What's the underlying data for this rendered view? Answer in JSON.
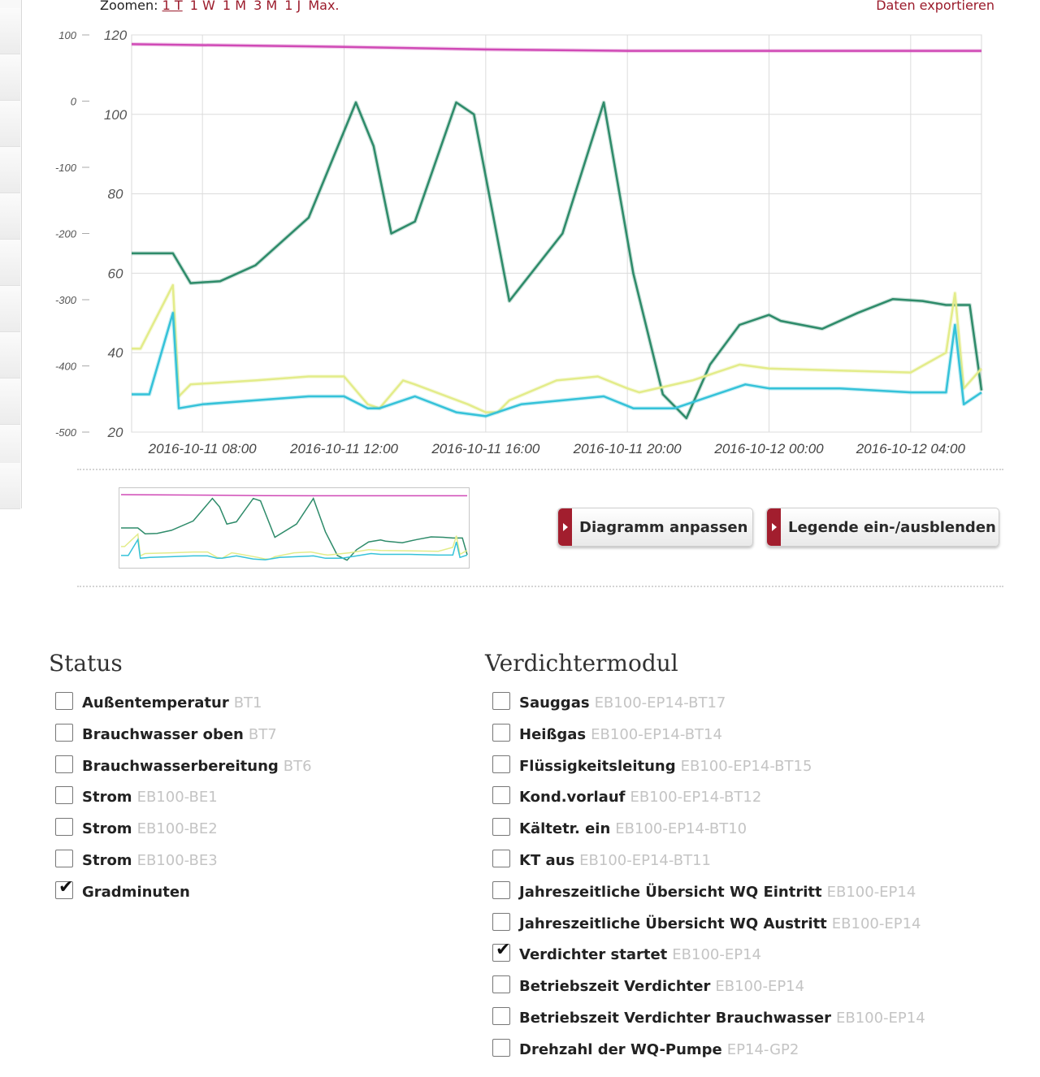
{
  "toolbar": {
    "zoom_label": "Zoomen:",
    "zoom_options": [
      "1 T",
      "1 W",
      "1 M",
      "3 M",
      "1 J",
      "Max."
    ],
    "zoom_active": "1 T",
    "export_label": "Daten exportieren"
  },
  "colors": {
    "accent": "#9b1b2b",
    "series_magenta": "#d04ab6",
    "series_green": "#2e8b6a",
    "series_yellow": "#e3ec8a",
    "series_cyan": "#35c2d9"
  },
  "chart_data": {
    "type": "line",
    "x_axis": {
      "type": "datetime",
      "ticks": [
        "2016-10-11 08:00",
        "2016-10-11 12:00",
        "2016-10-11 16:00",
        "2016-10-11 20:00",
        "2016-10-12 00:00",
        "2016-10-12 04:00"
      ]
    },
    "y_axis_left": {
      "ticks": [
        120,
        100,
        80,
        60,
        40,
        20
      ],
      "ylim": [
        20,
        120
      ]
    },
    "y_axis_secondary": {
      "ticks": [
        100,
        0,
        -100,
        -200,
        -300,
        -400,
        -500
      ],
      "ylim": [
        -500,
        100
      ]
    },
    "grid": true,
    "series": [
      {
        "axis": "secondary",
        "color": "#d04ab6",
        "x": [
          "2016-10-11 06:00",
          "2016-10-11 12:00",
          "2016-10-11 16:00",
          "2016-10-11 20:00",
          "2016-10-12 00:00",
          "2016-10-12 06:00"
        ],
        "values": [
          86,
          82,
          78,
          76,
          76,
          76
        ]
      },
      {
        "axis": "left",
        "color": "#2e8b6a",
        "x": [
          "2016-10-11 06:00",
          "2016-10-11 07:10",
          "2016-10-11 07:40",
          "2016-10-11 08:30",
          "2016-10-11 09:30",
          "2016-10-11 11:00",
          "2016-10-11 12:20",
          "2016-10-11 12:50",
          "2016-10-11 13:20",
          "2016-10-11 14:00",
          "2016-10-11 15:10",
          "2016-10-11 15:40",
          "2016-10-11 16:40",
          "2016-10-11 18:10",
          "2016-10-11 19:20",
          "2016-10-11 20:10",
          "2016-10-11 21:00",
          "2016-10-11 21:40",
          "2016-10-11 22:20",
          "2016-10-11 23:10",
          "2016-10-12 00:00",
          "2016-10-12 00:20",
          "2016-10-12 01:30",
          "2016-10-12 02:30",
          "2016-10-12 03:30",
          "2016-10-12 04:20",
          "2016-10-12 05:00",
          "2016-10-12 05:40",
          "2016-10-12 06:00"
        ],
        "values": [
          65,
          65,
          57.5,
          58,
          62,
          74,
          103,
          92,
          70,
          73,
          103,
          100,
          53,
          70,
          103,
          60,
          29.5,
          23.5,
          37,
          47,
          49.5,
          48,
          46,
          50,
          53.5,
          53,
          52,
          52,
          30.5
        ]
      },
      {
        "axis": "left",
        "color": "#e3ec8a",
        "x": [
          "2016-10-11 06:00",
          "2016-10-11 06:15",
          "2016-10-11 07:10",
          "2016-10-11 07:20",
          "2016-10-11 07:40",
          "2016-10-11 09:30",
          "2016-10-11 11:00",
          "2016-10-11 12:00",
          "2016-10-11 12:40",
          "2016-10-11 13:00",
          "2016-10-11 13:40",
          "2016-10-11 14:00",
          "2016-10-11 15:30",
          "2016-10-11 16:00",
          "2016-10-11 16:20",
          "2016-10-11 16:40",
          "2016-10-11 18:00",
          "2016-10-11 19:10",
          "2016-10-11 20:00",
          "2016-10-11 20:20",
          "2016-10-11 21:50",
          "2016-10-11 23:10",
          "2016-10-12 00:00",
          "2016-10-12 04:00",
          "2016-10-12 05:00",
          "2016-10-12 05:15",
          "2016-10-12 05:30",
          "2016-10-12 06:00"
        ],
        "values": [
          41,
          41,
          57,
          29,
          32,
          33,
          34,
          34,
          27,
          26,
          33,
          32,
          27,
          25,
          25,
          28,
          33,
          34,
          31,
          30,
          33,
          37,
          36,
          35,
          40,
          55,
          31,
          36
        ]
      },
      {
        "axis": "left",
        "color": "#35c2d9",
        "x": [
          "2016-10-11 06:00",
          "2016-10-11 06:30",
          "2016-10-11 07:10",
          "2016-10-11 07:20",
          "2016-10-11 08:00",
          "2016-10-11 09:30",
          "2016-10-11 11:00",
          "2016-10-11 12:00",
          "2016-10-11 12:40",
          "2016-10-11 13:00",
          "2016-10-11 14:00",
          "2016-10-11 15:10",
          "2016-10-11 16:00",
          "2016-10-11 17:00",
          "2016-10-11 19:20",
          "2016-10-11 20:10",
          "2016-10-11 20:20",
          "2016-10-11 21:20",
          "2016-10-11 23:20",
          "2016-10-12 00:00",
          "2016-10-12 02:00",
          "2016-10-12 04:00",
          "2016-10-12 05:00",
          "2016-10-12 05:15",
          "2016-10-12 05:30",
          "2016-10-12 06:00"
        ],
        "values": [
          29.5,
          29.5,
          50,
          26,
          27,
          28,
          29,
          29,
          26,
          26,
          29,
          25,
          24,
          27,
          29,
          26,
          26,
          26,
          32,
          31,
          31,
          30,
          30,
          47,
          27,
          30
        ]
      }
    ]
  },
  "actions": {
    "customize_label": "Diagramm anpassen",
    "legend_label": "Legende ein-/ausblenden"
  },
  "status_section": {
    "title": "Status",
    "items": [
      {
        "label": "Außentemperatur",
        "code": "BT1",
        "checked": false
      },
      {
        "label": "Brauchwasser oben",
        "code": "BT7",
        "checked": false
      },
      {
        "label": "Brauchwasserbereitung",
        "code": "BT6",
        "checked": false
      },
      {
        "label": "Strom",
        "code": "EB100-BE1",
        "checked": false
      },
      {
        "label": "Strom",
        "code": "EB100-BE2",
        "checked": false
      },
      {
        "label": "Strom",
        "code": "EB100-BE3",
        "checked": false
      },
      {
        "label": "Gradminuten",
        "code": "",
        "checked": true
      }
    ]
  },
  "compressor_section": {
    "title": "Verdichtermodul",
    "items": [
      {
        "label": "Sauggas",
        "code": "EB100-EP14-BT17",
        "checked": false
      },
      {
        "label": "Heißgas",
        "code": "EB100-EP14-BT14",
        "checked": false
      },
      {
        "label": "Flüssigkeitsleitung",
        "code": "EB100-EP14-BT15",
        "checked": false
      },
      {
        "label": "Kond.vorlauf",
        "code": "EB100-EP14-BT12",
        "checked": false
      },
      {
        "label": "Kältetr. ein",
        "code": "EB100-EP14-BT10",
        "checked": false
      },
      {
        "label": "KT aus",
        "code": "EB100-EP14-BT11",
        "checked": false
      },
      {
        "label": "Jahreszeitliche Übersicht WQ Eintritt",
        "code": "EB100-EP14",
        "checked": false
      },
      {
        "label": "Jahreszeitliche Übersicht WQ Austritt",
        "code": "EB100-EP14",
        "checked": false
      },
      {
        "label": "Verdichter startet",
        "code": "EB100-EP14",
        "checked": true
      },
      {
        "label": "Betriebszeit Verdichter",
        "code": "EB100-EP14",
        "checked": false
      },
      {
        "label": "Betriebszeit Verdichter Brauchwasser",
        "code": "EB100-EP14",
        "checked": false
      },
      {
        "label": "Drehzahl der WQ-Pumpe",
        "code": "EP14-GP2",
        "checked": false
      }
    ]
  }
}
